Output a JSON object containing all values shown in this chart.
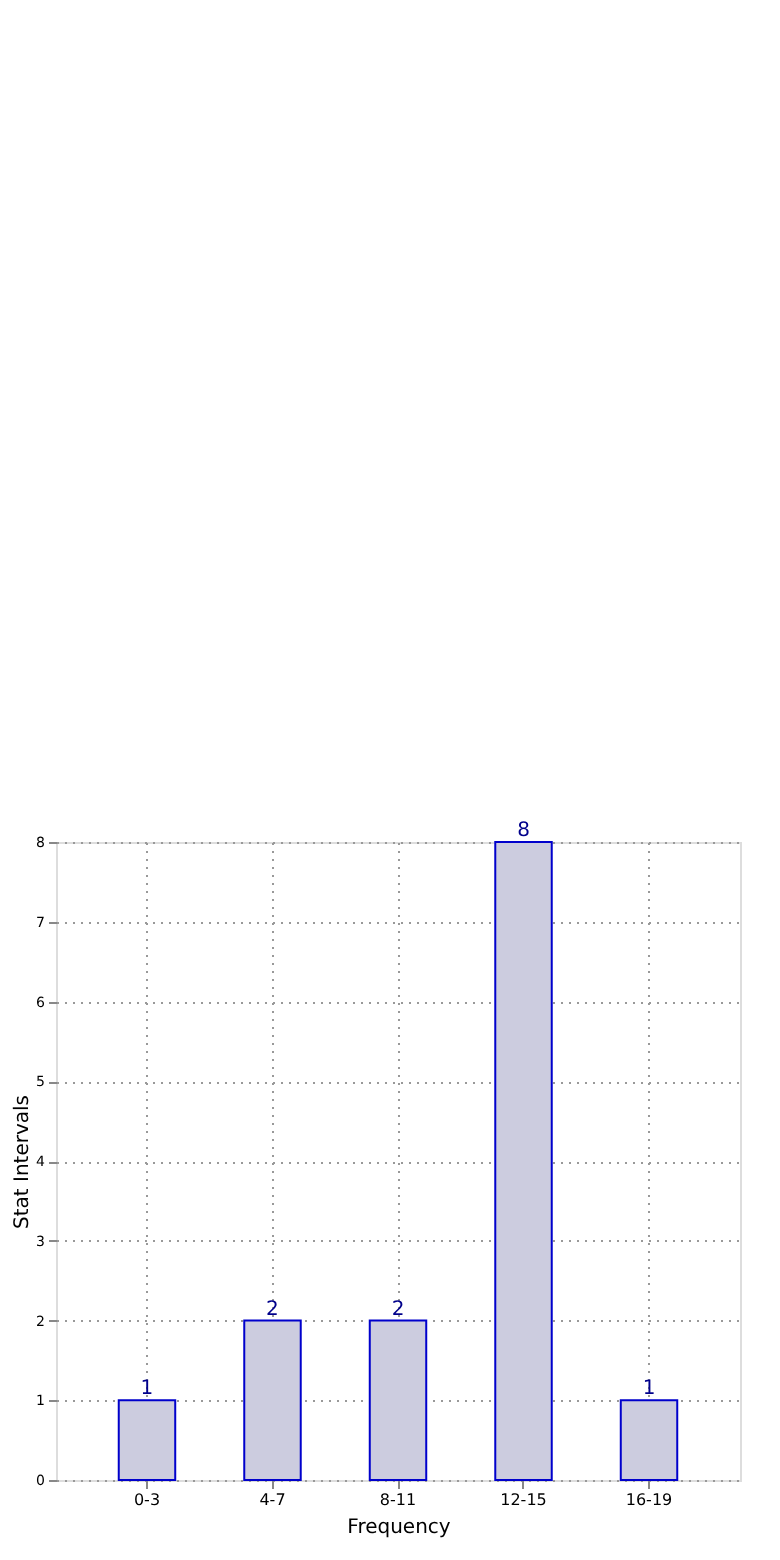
{
  "chart_data": {
    "type": "bar",
    "xlabel": "Frequency",
    "ylabel": "Stat Intervals",
    "categories": [
      "0-3",
      "4-7",
      "8-11",
      "12-15",
      "16-19"
    ],
    "values": [
      1,
      2,
      2,
      8,
      1
    ],
    "color": "#ccccdf",
    "ylim": [
      0,
      8
    ],
    "yticks": [
      0,
      1,
      2,
      3,
      4,
      5,
      6,
      7,
      8
    ],
    "grid": true,
    "data_labels": true
  }
}
